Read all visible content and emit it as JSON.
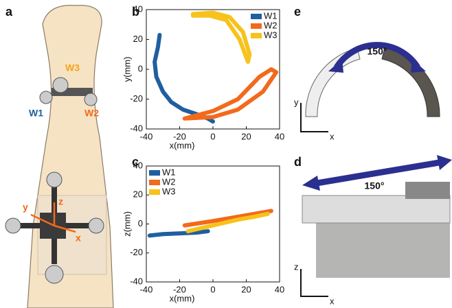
{
  "panels": [
    "a",
    "b",
    "c",
    "d",
    "e"
  ],
  "illustrations": {
    "arm": {
      "markers": [
        "W1",
        "W2",
        "W3"
      ],
      "axes": [
        "x",
        "y",
        "z"
      ]
    },
    "ring_top": {
      "angle": "150°",
      "axes": [
        "y",
        "x"
      ]
    },
    "ring_side": {
      "angle": "150°",
      "axes": [
        "z",
        "x"
      ]
    }
  },
  "chart_data": [
    {
      "type": "line",
      "xlabel": "x(mm)",
      "ylabel": "y(mm)",
      "xlim": [
        -40,
        40
      ],
      "ylim": [
        -40,
        40
      ],
      "xticks": [
        -40,
        -20,
        0,
        20,
        40
      ],
      "yticks": [
        -40,
        -20,
        0,
        20,
        40
      ],
      "legend": "upper right",
      "series": [
        {
          "name": "W1",
          "color": "#1f5fa0",
          "x": [
            -32,
            -33,
            -35,
            -34,
            -30,
            -25,
            -18,
            -10,
            -3,
            0
          ],
          "values": [
            23,
            15,
            5,
            -5,
            -15,
            -22,
            -27,
            -30,
            -33,
            -35
          ]
        },
        {
          "name": "W2",
          "color": "#f26a1b",
          "x": [
            -17,
            0,
            15,
            28,
            35,
            38,
            30,
            15,
            0,
            -17
          ],
          "values": [
            -33,
            -28,
            -20,
            -5,
            0,
            -2,
            -15,
            -27,
            -32,
            -33
          ]
        },
        {
          "name": "W3",
          "color": "#f7c21b",
          "x": [
            -12,
            0,
            10,
            18,
            22,
            21,
            16,
            8,
            -2,
            -12
          ],
          "values": [
            37,
            38,
            35,
            25,
            10,
            5,
            20,
            33,
            36,
            36
          ]
        }
      ]
    },
    {
      "type": "line",
      "xlabel": "x(mm)",
      "ylabel": "z(mm)",
      "xlim": [
        -40,
        40
      ],
      "ylim": [
        -40,
        40
      ],
      "xticks": [
        -40,
        -20,
        0,
        20,
        40
      ],
      "yticks": [
        -40,
        -20,
        0,
        20,
        40
      ],
      "legend": "upper left",
      "series": [
        {
          "name": "W1",
          "color": "#1f5fa0",
          "x": [
            -38,
            -30,
            -20,
            -10,
            -3
          ],
          "values": [
            -8,
            -7,
            -6.5,
            -6,
            -5
          ]
        },
        {
          "name": "W2",
          "color": "#f26a1b",
          "x": [
            -17,
            0,
            15,
            25,
            35
          ],
          "values": [
            -1,
            2,
            5,
            7,
            9
          ]
        },
        {
          "name": "W3",
          "color": "#f7c21b",
          "x": [
            -15,
            0,
            15,
            25,
            33
          ],
          "values": [
            -5,
            -1,
            3,
            5,
            7
          ]
        }
      ]
    }
  ]
}
